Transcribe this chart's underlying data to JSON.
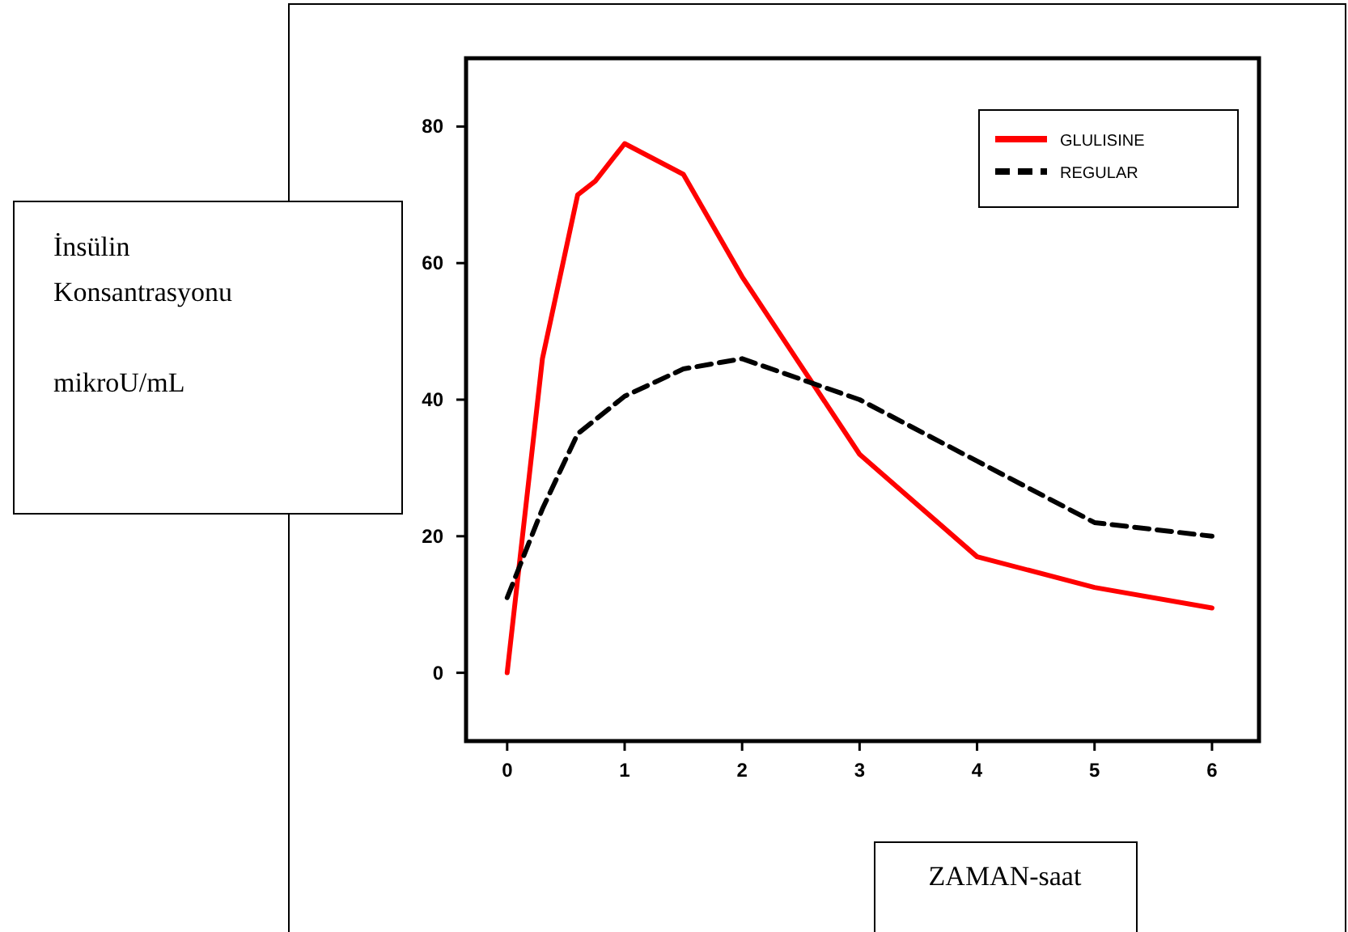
{
  "chart_data": {
    "type": "line",
    "xlabel": "ZAMAN-saat",
    "ylabel": "İnsülin\nKonsantrasyonu\n\nmikroU/mL",
    "xlim": [
      -0.35,
      6.4
    ],
    "ylim": [
      -10,
      90
    ],
    "xticks": [
      0,
      1,
      2,
      3,
      4,
      5,
      6
    ],
    "yticks": [
      0,
      20,
      40,
      60,
      80
    ],
    "grid": false,
    "legend": "top right",
    "series": [
      {
        "name": "GLULISINE",
        "color": "#ff0000",
        "line_style": "solid",
        "x": [
          0,
          0.3,
          0.6,
          0.75,
          1,
          1.5,
          2,
          2.5,
          3,
          4,
          5,
          6
        ],
        "values": [
          0,
          46,
          70,
          72,
          77.5,
          73,
          58,
          45,
          32,
          17,
          12.5,
          9.5
        ]
      },
      {
        "name": "REGULAR",
        "color": "#000000",
        "line_style": "dashed",
        "x": [
          0,
          0.3,
          0.6,
          1,
          1.5,
          2,
          2.5,
          3,
          4,
          5,
          6
        ],
        "values": [
          11,
          24,
          35,
          40.5,
          44.5,
          46,
          43,
          40,
          31,
          22,
          20
        ]
      }
    ]
  }
}
